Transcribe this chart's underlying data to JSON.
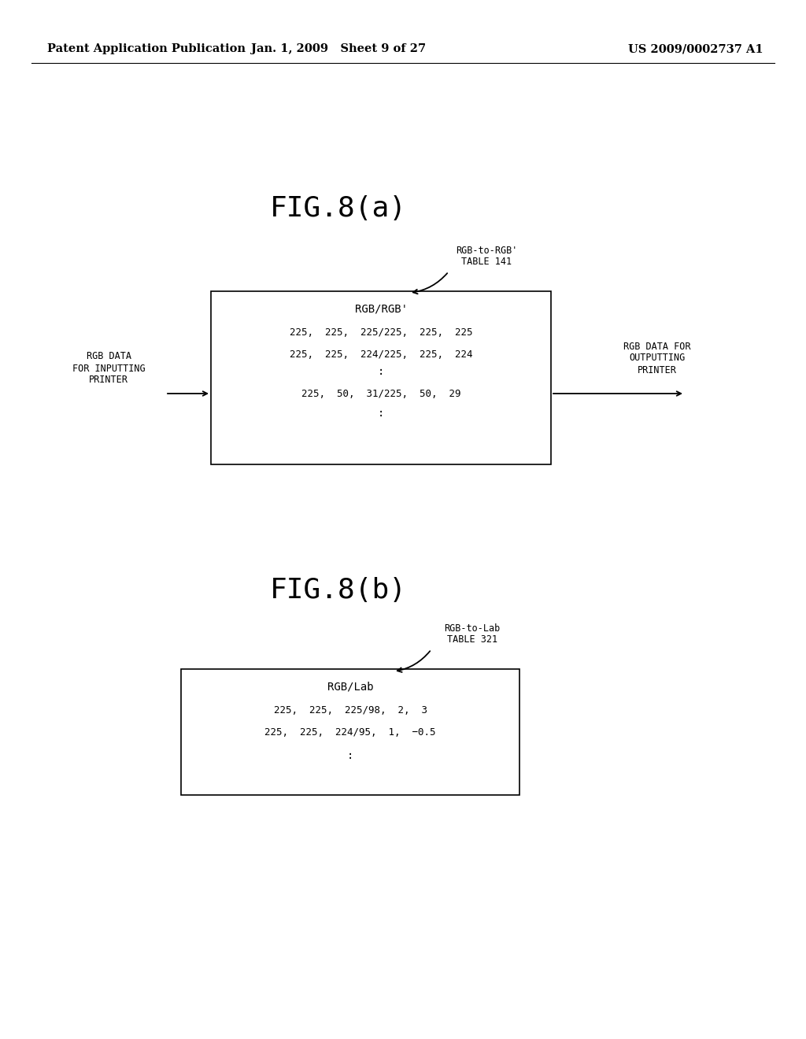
{
  "header_left": "Patent Application Publication",
  "header_mid": "Jan. 1, 2009   Sheet 9 of 27",
  "header_right": "US 2009/0002737 A1",
  "fig_a_title": "FIG.8(a)",
  "fig_a_label_line1": "RGB-to-RGB'",
  "fig_a_label_line2": "TABLE 141",
  "fig_a_box_title": "RGB/RGB'",
  "fig_a_box_line1": "225,  225,  225/225,  225,  225",
  "fig_a_box_line2": "225,  225,  224/225,  225,  224",
  "fig_a_box_dots1": ":",
  "fig_a_box_line3": "225,  50,  31/225,  50,  29",
  "fig_a_box_dots2": ":",
  "fig_a_left_label": "RGB DATA\nFOR INPUTTING\nPRINTER",
  "fig_a_right_label": "RGB DATA FOR\nOUTPUTTING\nPRINTER",
  "fig_b_title": "FIG.8(b)",
  "fig_b_label_line1": "RGB-to-Lab",
  "fig_b_label_line2": "TABLE 321",
  "fig_b_box_title": "RGB/Lab",
  "fig_b_box_line1": "225,  225,  225/98,  2,  3",
  "fig_b_box_line2": "225,  225,  224/95,  1,  −0.5",
  "fig_b_box_dots1": ":",
  "bg_color": "#ffffff",
  "text_color": "#000000"
}
